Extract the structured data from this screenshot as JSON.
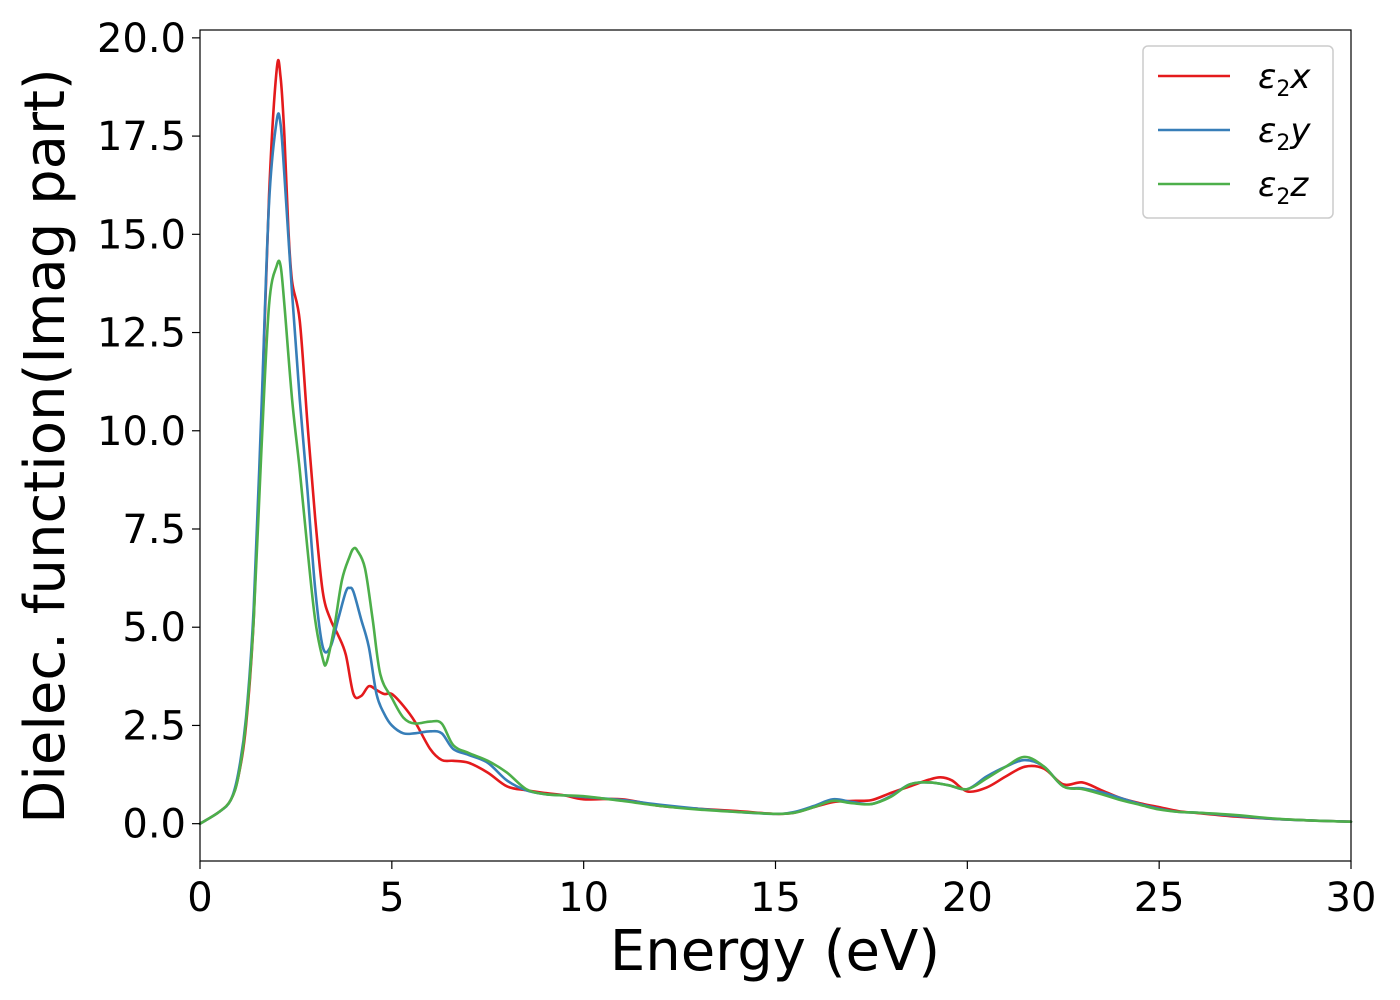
{
  "chart_data": {
    "type": "line",
    "xlabel": "Energy (eV)",
    "ylabel": "Dielec. function(Imag part)",
    "xlim": [
      0,
      30
    ],
    "ylim": [
      -0.95,
      20.2
    ],
    "xticks": [
      0,
      5,
      10,
      15,
      20,
      25,
      30
    ],
    "xtick_labels": [
      "0",
      "5",
      "10",
      "15",
      "20",
      "25",
      "30"
    ],
    "yticks": [
      0,
      2.5,
      5,
      7.5,
      10,
      12.5,
      15,
      17.5,
      20
    ],
    "ytick_labels": [
      "0.0",
      "2.5",
      "5.0",
      "7.5",
      "10.0",
      "12.5",
      "15.0",
      "17.5",
      "20.0"
    ],
    "grid": false,
    "legend_position": "top-right",
    "series": [
      {
        "name": "ε₂x",
        "legend_base": "ε",
        "legend_sub": "2",
        "legend_var": "x",
        "color": "#e41a1c",
        "x": [
          0,
          0.5,
          0.8,
          1.0,
          1.2,
          1.4,
          1.6,
          1.8,
          2.0,
          2.1,
          2.2,
          2.3,
          2.4,
          2.6,
          2.8,
          3.0,
          3.2,
          3.4,
          3.6,
          3.8,
          4.0,
          4.2,
          4.4,
          4.6,
          4.8,
          5.0,
          5.3,
          5.6,
          6.0,
          6.3,
          6.6,
          7.0,
          7.5,
          8.0,
          8.5,
          9.0,
          9.5,
          10.0,
          11.0,
          12.0,
          13.0,
          14.0,
          15.0,
          15.5,
          16.0,
          16.5,
          17.0,
          17.5,
          18.0,
          18.5,
          19.0,
          19.3,
          19.6,
          20.0,
          20.5,
          21.0,
          21.5,
          22.0,
          22.5,
          23.0,
          23.5,
          24.0,
          24.5,
          25.0,
          25.5,
          26.0,
          27.0,
          28.0,
          29.0,
          30.0
        ],
        "y": [
          0,
          0.3,
          0.6,
          1.2,
          2.5,
          5.2,
          10.2,
          16.0,
          19.2,
          19.0,
          17.5,
          15.2,
          13.8,
          12.8,
          10.2,
          7.8,
          5.9,
          5.2,
          4.8,
          4.3,
          3.3,
          3.25,
          3.5,
          3.4,
          3.3,
          3.3,
          3.0,
          2.6,
          1.9,
          1.62,
          1.6,
          1.55,
          1.3,
          0.95,
          0.85,
          0.78,
          0.72,
          0.62,
          0.62,
          0.45,
          0.38,
          0.32,
          0.25,
          0.28,
          0.42,
          0.55,
          0.58,
          0.6,
          0.78,
          0.95,
          1.12,
          1.18,
          1.1,
          0.82,
          0.92,
          1.2,
          1.45,
          1.4,
          1.0,
          1.05,
          0.85,
          0.65,
          0.52,
          0.42,
          0.32,
          0.27,
          0.18,
          0.12,
          0.08,
          0.05
        ]
      },
      {
        "name": "ε₂y",
        "legend_base": "ε",
        "legend_sub": "2",
        "legend_var": "y",
        "color": "#377eb8",
        "x": [
          0,
          0.5,
          0.8,
          1.0,
          1.2,
          1.4,
          1.6,
          1.8,
          2.0,
          2.1,
          2.2,
          2.4,
          2.6,
          2.8,
          3.0,
          3.2,
          3.4,
          3.6,
          3.8,
          3.9,
          4.0,
          4.2,
          4.4,
          4.6,
          4.8,
          5.0,
          5.3,
          5.6,
          6.0,
          6.3,
          6.6,
          7.0,
          7.5,
          8.0,
          8.5,
          9.0,
          9.5,
          10.0,
          11.0,
          12.0,
          13.0,
          14.0,
          15.0,
          15.5,
          16.0,
          16.5,
          17.0,
          17.5,
          18.0,
          18.5,
          19.0,
          19.5,
          20.0,
          20.5,
          21.0,
          21.5,
          22.0,
          22.5,
          23.0,
          23.5,
          24.0,
          24.5,
          25.0,
          25.5,
          26.0,
          27.0,
          28.0,
          29.0,
          30.0
        ],
        "y": [
          0,
          0.3,
          0.6,
          1.3,
          2.7,
          5.5,
          10.5,
          15.8,
          17.9,
          17.8,
          16.5,
          13.5,
          10.8,
          8.5,
          6.0,
          4.5,
          4.5,
          5.2,
          5.9,
          6.0,
          5.9,
          5.2,
          4.5,
          3.3,
          2.8,
          2.5,
          2.3,
          2.3,
          2.35,
          2.3,
          1.9,
          1.75,
          1.55,
          1.1,
          0.85,
          0.75,
          0.72,
          0.68,
          0.6,
          0.48,
          0.38,
          0.3,
          0.25,
          0.3,
          0.45,
          0.62,
          0.55,
          0.5,
          0.7,
          1.0,
          1.05,
          0.98,
          0.88,
          1.2,
          1.45,
          1.62,
          1.45,
          0.95,
          0.9,
          0.8,
          0.65,
          0.5,
          0.38,
          0.3,
          0.28,
          0.2,
          0.12,
          0.08,
          0.05
        ]
      },
      {
        "name": "ε₂z",
        "legend_base": "ε",
        "legend_sub": "2",
        "legend_var": "z",
        "color": "#4daf4a",
        "x": [
          0,
          0.5,
          0.8,
          1.0,
          1.2,
          1.4,
          1.6,
          1.8,
          2.0,
          2.1,
          2.2,
          2.4,
          2.6,
          2.8,
          3.0,
          3.2,
          3.3,
          3.5,
          3.7,
          3.9,
          4.0,
          4.1,
          4.3,
          4.5,
          4.7,
          5.0,
          5.3,
          5.6,
          6.0,
          6.3,
          6.6,
          7.0,
          7.5,
          8.0,
          8.5,
          9.0,
          9.5,
          10.0,
          11.0,
          12.0,
          13.0,
          14.0,
          15.0,
          15.5,
          16.0,
          16.5,
          17.0,
          17.5,
          18.0,
          18.5,
          19.0,
          19.5,
          20.0,
          20.5,
          21.0,
          21.5,
          22.0,
          22.5,
          23.0,
          23.5,
          24.0,
          24.5,
          25.0,
          25.5,
          26.0,
          27.0,
          28.0,
          29.0,
          30.0
        ],
        "y": [
          0,
          0.3,
          0.6,
          1.2,
          2.6,
          5.2,
          9.5,
          13.2,
          14.2,
          14.2,
          13.2,
          10.8,
          9.0,
          7.0,
          5.2,
          4.2,
          4.1,
          5.0,
          6.2,
          6.8,
          7.0,
          6.95,
          6.5,
          5.2,
          3.8,
          3.2,
          2.7,
          2.55,
          2.6,
          2.55,
          2.0,
          1.8,
          1.6,
          1.3,
          0.88,
          0.75,
          0.72,
          0.7,
          0.58,
          0.45,
          0.36,
          0.3,
          0.25,
          0.28,
          0.42,
          0.58,
          0.52,
          0.5,
          0.68,
          1.0,
          1.05,
          0.98,
          0.88,
          1.15,
          1.45,
          1.7,
          1.45,
          0.95,
          0.88,
          0.75,
          0.6,
          0.48,
          0.36,
          0.3,
          0.28,
          0.22,
          0.13,
          0.08,
          0.05
        ]
      }
    ]
  }
}
